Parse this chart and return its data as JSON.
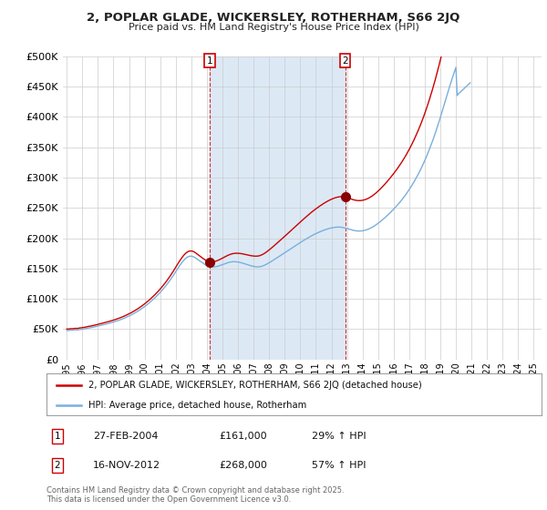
{
  "title": "2, POPLAR GLADE, WICKERSLEY, ROTHERHAM, S66 2JQ",
  "subtitle": "Price paid vs. HM Land Registry's House Price Index (HPI)",
  "sale_color": "#cc0000",
  "hpi_color": "#7aafdc",
  "shade_color": "#dce9f5",
  "grid_color": "#cccccc",
  "background_color": "#ffffff",
  "plot_bg_color": "#ffffff",
  "legend_label_sale": "2, POPLAR GLADE, WICKERSLEY, ROTHERHAM, S66 2JQ (detached house)",
  "legend_label_hpi": "HPI: Average price, detached house, Rotherham",
  "annotation1_date": "27-FEB-2004",
  "annotation1_price": "£161,000",
  "annotation1_pct": "29% ↑ HPI",
  "annotation2_date": "16-NOV-2012",
  "annotation2_price": "£268,000",
  "annotation2_pct": "57% ↑ HPI",
  "copyright_text": "Contains HM Land Registry data © Crown copyright and database right 2025.\nThis data is licensed under the Open Government Licence v3.0.",
  "sale1_date_num": 2004.16,
  "sale1_price": 161000,
  "sale2_date_num": 2012.88,
  "sale2_price": 268000,
  "xtick_years": [
    1995,
    1996,
    1997,
    1998,
    1999,
    2000,
    2001,
    2002,
    2003,
    2004,
    2005,
    2006,
    2007,
    2008,
    2009,
    2010,
    2011,
    2012,
    2013,
    2014,
    2015,
    2016,
    2017,
    2018,
    2019,
    2020,
    2021,
    2022,
    2023,
    2024,
    2025
  ],
  "ylim": [
    0,
    500000
  ],
  "ytick_labels": [
    "£0",
    "£50K",
    "£100K",
    "£150K",
    "£200K",
    "£250K",
    "£300K",
    "£350K",
    "£400K",
    "£450K",
    "£500K"
  ],
  "hpi_monthly": [
    48000,
    47800,
    48200,
    48500,
    48300,
    48600,
    48800,
    49000,
    48700,
    49200,
    49500,
    49800,
    50000,
    50300,
    50700,
    51200,
    51600,
    52100,
    52400,
    52800,
    53200,
    53700,
    54200,
    54800,
    55200,
    55700,
    56200,
    56800,
    57300,
    57900,
    58400,
    58900,
    59500,
    60000,
    60600,
    61200,
    61800,
    62500,
    63200,
    63900,
    64600,
    65400,
    66200,
    67000,
    67900,
    68800,
    69800,
    70800,
    71800,
    72800,
    73900,
    75000,
    76200,
    77400,
    78700,
    80000,
    81400,
    82800,
    84300,
    85800,
    87400,
    89000,
    90700,
    92400,
    94200,
    96100,
    98000,
    99900,
    101900,
    104000,
    106100,
    108300,
    110600,
    113000,
    115500,
    118000,
    120600,
    123300,
    126100,
    129000,
    132000,
    135100,
    138300,
    141600,
    144900,
    148200,
    151500,
    154700,
    157700,
    160500,
    163100,
    165400,
    167300,
    168800,
    169800,
    170300,
    170300,
    169900,
    169000,
    167800,
    166300,
    164800,
    163200,
    161600,
    160100,
    158600,
    157200,
    155900,
    154800,
    153900,
    153200,
    152800,
    152500,
    152500,
    152700,
    153000,
    153500,
    154100,
    154800,
    155600,
    156400,
    157200,
    158000,
    158800,
    159500,
    160100,
    160600,
    161000,
    161200,
    161300,
    161200,
    161000,
    160700,
    160300,
    159800,
    159200,
    158600,
    157900,
    157200,
    156500,
    155800,
    155100,
    154500,
    154000,
    153500,
    153100,
    152800,
    152700,
    152700,
    153000,
    153500,
    154200,
    155000,
    156000,
    157100,
    158300,
    159500,
    160800,
    162100,
    163500,
    164800,
    166200,
    167600,
    169000,
    170400,
    171800,
    173200,
    174600,
    176000,
    177400,
    178800,
    180200,
    181600,
    183000,
    184400,
    185800,
    187200,
    188600,
    190000,
    191400,
    192800,
    194100,
    195500,
    196800,
    198100,
    199400,
    200700,
    201900,
    203100,
    204300,
    205400,
    206500,
    207500,
    208500,
    209500,
    210400,
    211300,
    212200,
    213000,
    213800,
    214500,
    215200,
    215800,
    216400,
    216900,
    217300,
    217700,
    218000,
    218200,
    218300,
    218300,
    218200,
    217900,
    217500,
    217000,
    216500,
    215900,
    215300,
    214600,
    214000,
    213400,
    212900,
    212500,
    212100,
    211900,
    211800,
    211800,
    211900,
    212200,
    212600,
    213100,
    213700,
    214500,
    215400,
    216400,
    217500,
    218700,
    220000,
    221400,
    222900,
    224500,
    226100,
    227800,
    229600,
    231400,
    233300,
    235200,
    237200,
    239200,
    241300,
    243400,
    245600,
    247800,
    250100,
    252400,
    254800,
    257300,
    259800,
    262400,
    265100,
    267900,
    270800,
    273800,
    276900,
    280100,
    283400,
    286800,
    290300,
    293900,
    297700,
    301600,
    305600,
    309800,
    314100,
    318600,
    323200,
    328000,
    333000,
    338100,
    343400,
    348900,
    354500,
    360300,
    366300,
    372500,
    378900,
    385400,
    392200,
    399100,
    406100,
    413200,
    420400,
    427600,
    434800,
    441900,
    448900,
    455800,
    462500,
    469000,
    475300,
    481300,
    435000,
    438000,
    440000,
    442000,
    444000,
    446000,
    448000,
    450000,
    452000,
    454000,
    456000
  ]
}
